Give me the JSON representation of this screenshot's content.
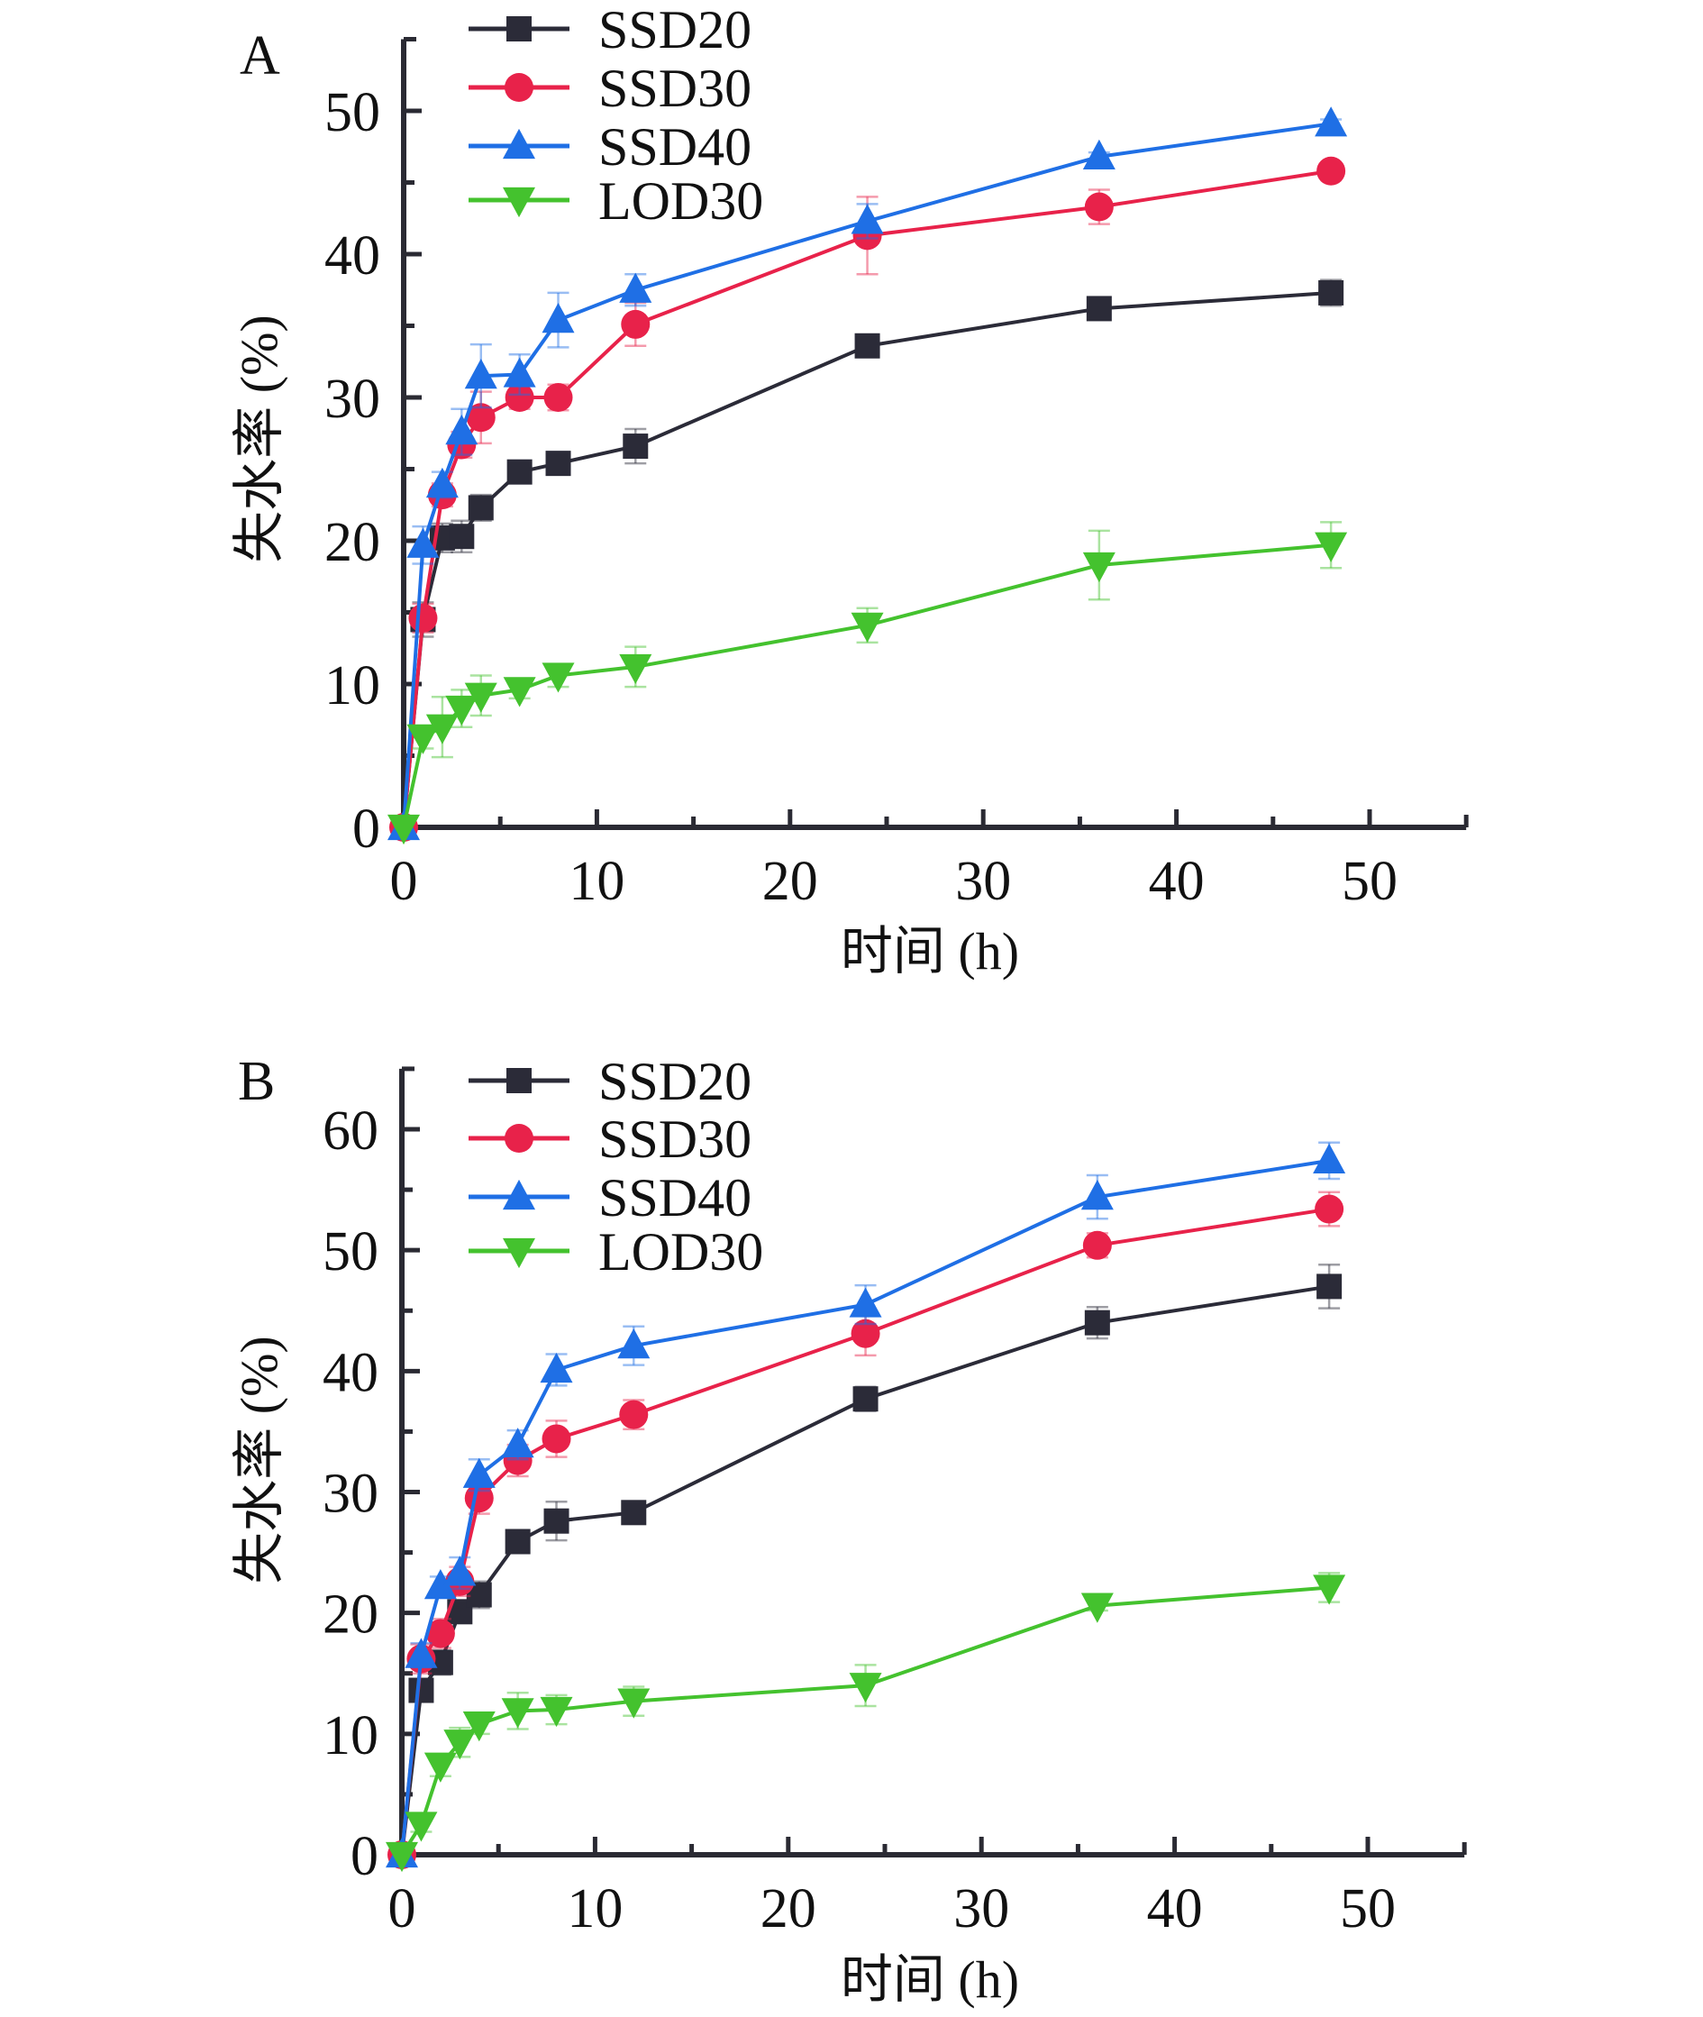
{
  "chart_data": [
    {
      "type": "line",
      "panel_label": "A",
      "xlabel": "时间 (h)",
      "ylabel": "失水率 (%)",
      "xlim": [
        0,
        55
      ],
      "ylim": [
        0,
        55
      ],
      "xticks": [
        0,
        10,
        20,
        30,
        40,
        50
      ],
      "yticks": [
        0,
        10,
        20,
        30,
        40,
        50
      ],
      "grid": false,
      "legend_position": "top-left",
      "x": [
        0,
        1,
        2,
        3,
        4,
        6,
        8,
        12,
        24,
        36,
        48
      ],
      "series": [
        {
          "name": "SSD20",
          "marker": "square",
          "color": "#2b2b38",
          "values": [
            0,
            14.5,
            20.2,
            20.3,
            22.3,
            24.8,
            25.4,
            26.6,
            33.6,
            36.2,
            37.3
          ],
          "errors": [
            0,
            1.2,
            1.0,
            1.1,
            0.9,
            0.6,
            0.6,
            1.2,
            0.5,
            0.5,
            0.9
          ]
        },
        {
          "name": "SSD30",
          "marker": "circle",
          "color": "#e8224a",
          "values": [
            0,
            14.6,
            23.2,
            26.7,
            28.6,
            30.0,
            30.0,
            35.1,
            41.3,
            43.3,
            45.8
          ],
          "errors": [
            0,
            1.0,
            0.8,
            0.9,
            1.8,
            0.8,
            0.9,
            1.5,
            2.7,
            1.2,
            0.5
          ]
        },
        {
          "name": "SSD40",
          "marker": "triangle-up",
          "color": "#1f6fe5",
          "values": [
            0,
            19.7,
            23.9,
            27.6,
            31.5,
            31.6,
            35.4,
            37.5,
            42.3,
            46.8,
            49.1
          ],
          "errors": [
            0,
            1.3,
            0.9,
            1.6,
            2.2,
            1.4,
            1.9,
            1.1,
            1.2,
            0.3,
            0.3
          ]
        },
        {
          "name": "LOD30",
          "marker": "triangle-down",
          "color": "#44c22e",
          "values": [
            0,
            6.3,
            7.0,
            8.3,
            9.2,
            9.6,
            10.6,
            11.2,
            14.1,
            18.3,
            19.7
          ],
          "errors": [
            0,
            0.8,
            2.1,
            1.3,
            1.4,
            0.6,
            0.8,
            1.4,
            1.2,
            2.4,
            1.6
          ]
        }
      ]
    },
    {
      "type": "line",
      "panel_label": "B",
      "xlabel": "时间 (h)",
      "ylabel": "失水率 (%)",
      "xlim": [
        0,
        55
      ],
      "ylim": [
        0,
        65
      ],
      "xticks": [
        0,
        10,
        20,
        30,
        40,
        50
      ],
      "yticks": [
        0,
        10,
        20,
        30,
        40,
        50,
        60
      ],
      "grid": false,
      "legend_position": "top-left",
      "x": [
        0,
        1,
        2,
        3,
        4,
        6,
        8,
        12,
        24,
        36,
        48
      ],
      "series": [
        {
          "name": "SSD20",
          "marker": "square",
          "color": "#2b2b38",
          "values": [
            0,
            13.6,
            15.9,
            20.1,
            21.5,
            25.9,
            27.6,
            28.3,
            37.7,
            44.0,
            47.0
          ],
          "errors": [
            0,
            0.9,
            1.0,
            0.8,
            1.1,
            0.9,
            1.6,
            0.9,
            1.0,
            1.3,
            1.8
          ]
        },
        {
          "name": "SSD30",
          "marker": "circle",
          "color": "#e8224a",
          "values": [
            0,
            16.2,
            18.3,
            22.6,
            29.5,
            32.6,
            34.4,
            36.4,
            43.1,
            50.4,
            53.4
          ],
          "errors": [
            0,
            1.2,
            1.2,
            1.2,
            1.3,
            1.3,
            1.5,
            1.2,
            1.8,
            1.0,
            1.4
          ]
        },
        {
          "name": "SSD40",
          "marker": "triangle-up",
          "color": "#1f6fe5",
          "values": [
            0,
            16.5,
            22.2,
            23.3,
            31.4,
            33.9,
            40.1,
            42.1,
            45.5,
            54.4,
            57.4
          ],
          "errors": [
            0,
            1.0,
            0.8,
            1.3,
            1.3,
            1.2,
            1.3,
            1.6,
            1.6,
            1.8,
            1.5
          ]
        },
        {
          "name": "LOD30",
          "marker": "triangle-down",
          "color": "#44c22e",
          "values": [
            0,
            2.5,
            7.4,
            9.3,
            10.8,
            11.9,
            12.0,
            12.7,
            14.0,
            20.6,
            22.1
          ],
          "errors": [
            0,
            0.6,
            0.9,
            1.2,
            0.8,
            1.5,
            1.2,
            1.2,
            1.7,
            0.4,
            1.2
          ]
        }
      ]
    }
  ]
}
